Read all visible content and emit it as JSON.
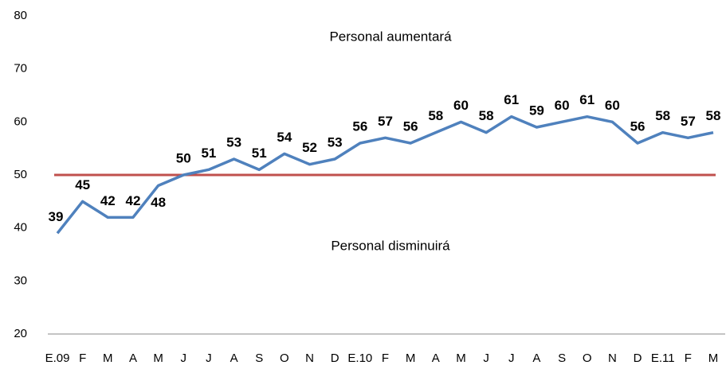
{
  "chart_data": {
    "type": "line",
    "categories": [
      "E.09",
      "F",
      "M",
      "A",
      "M",
      "J",
      "J",
      "A",
      "S",
      "O",
      "N",
      "D",
      "E.10",
      "F",
      "M",
      "A",
      "M",
      "J",
      "J",
      "A",
      "S",
      "O",
      "N",
      "D",
      "E.11",
      "F",
      "M"
    ],
    "series": [
      {
        "color": "#4f81bd",
        "values": [
          39,
          45,
          42,
          42,
          48,
          50,
          51,
          53,
          51,
          54,
          52,
          53,
          56,
          57,
          56,
          58,
          60,
          58,
          61,
          59,
          60,
          61,
          60,
          56,
          58,
          57,
          58
        ]
      }
    ],
    "reference_line": {
      "value": 50,
      "color": "#c0504d"
    },
    "annotations": [
      "Personal aumentará",
      "Personal disminuirá"
    ],
    "ylim": [
      20,
      80
    ],
    "yticks": [
      20,
      30,
      40,
      50,
      60,
      70,
      80
    ]
  }
}
